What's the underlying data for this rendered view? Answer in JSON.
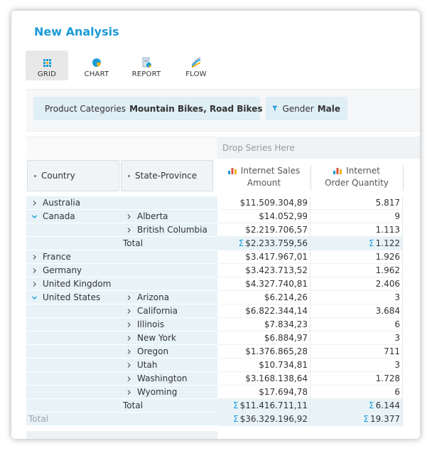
{
  "title": "New Analysis",
  "views": [
    {
      "label": "GRID",
      "icon": "grid-icon",
      "active": true
    },
    {
      "label": "CHART",
      "icon": "pie-chart-icon",
      "active": false
    },
    {
      "label": "REPORT",
      "icon": "report-icon",
      "active": false
    },
    {
      "label": "FLOW",
      "icon": "flow-icon",
      "active": false
    }
  ],
  "filters": [
    {
      "field": "Product Categories",
      "value": "Mountain Bikes, Road Bikes",
      "icon": "filter-icon"
    },
    {
      "field": "Gender",
      "value": "Male",
      "icon": "filter-icon"
    }
  ],
  "grid": {
    "drop_series": "Drop Series Here",
    "row_headers": [
      "Country",
      "State-Province"
    ],
    "columns": [
      {
        "line1": "Internet Sales",
        "line2": "Amount",
        "icon": "bar-chart-icon"
      },
      {
        "line1": "Internet",
        "line2": "Order Quantity",
        "icon": "bar-chart-icon"
      }
    ],
    "rows": [
      {
        "level": 1,
        "label": "Australia",
        "expanded": false,
        "v1": "$11.509.304,89",
        "v2": "5.817"
      },
      {
        "level": 1,
        "label": "Canada",
        "expanded": true,
        "child": "Alberta",
        "v1": "$14.052,99",
        "v2": "9"
      },
      {
        "level": 2,
        "label": "British Columbia",
        "expanded": false,
        "v1": "$2.219.706,57",
        "v2": "1.113"
      },
      {
        "level": "total",
        "label": "Total",
        "v1": "$2.233.759,56",
        "v2": "1.122"
      },
      {
        "level": 1,
        "label": "France",
        "expanded": false,
        "v1": "$3.417.967,01",
        "v2": "1.926"
      },
      {
        "level": 1,
        "label": "Germany",
        "expanded": false,
        "v1": "$3.423.713,52",
        "v2": "1.962"
      },
      {
        "level": 1,
        "label": "United Kingdom",
        "expanded": false,
        "v1": "$4.327.740,81",
        "v2": "2.406"
      },
      {
        "level": 1,
        "label": "United States",
        "expanded": true,
        "child": "Arizona",
        "v1": "$6.214,26",
        "v2": "3"
      },
      {
        "level": 2,
        "label": "California",
        "expanded": false,
        "v1": "$6.822.344,14",
        "v2": "3.684"
      },
      {
        "level": 2,
        "label": "Illinois",
        "expanded": false,
        "v1": "$7.834,23",
        "v2": "6"
      },
      {
        "level": 2,
        "label": "New York",
        "expanded": false,
        "v1": "$6.884,97",
        "v2": "3"
      },
      {
        "level": 2,
        "label": "Oregon",
        "expanded": false,
        "v1": "$1.376.865,28",
        "v2": "711"
      },
      {
        "level": 2,
        "label": "Utah",
        "expanded": false,
        "v1": "$10.734,81",
        "v2": "3"
      },
      {
        "level": 2,
        "label": "Washington",
        "expanded": false,
        "v1": "$3.168.138,64",
        "v2": "1.728"
      },
      {
        "level": 2,
        "label": "Wyoming",
        "expanded": false,
        "v1": "$17.694,78",
        "v2": "6"
      },
      {
        "level": "total",
        "label": "Total",
        "v1": "$11.416.711,11",
        "v2": "6.144"
      },
      {
        "level": "grand",
        "label": "Total",
        "v1": "$36.329.196,92",
        "v2": "19.377"
      }
    ],
    "sigma": "Σ"
  },
  "colors": {
    "accent": "#1b9bd7",
    "row_bg": "#e8f3f8"
  }
}
